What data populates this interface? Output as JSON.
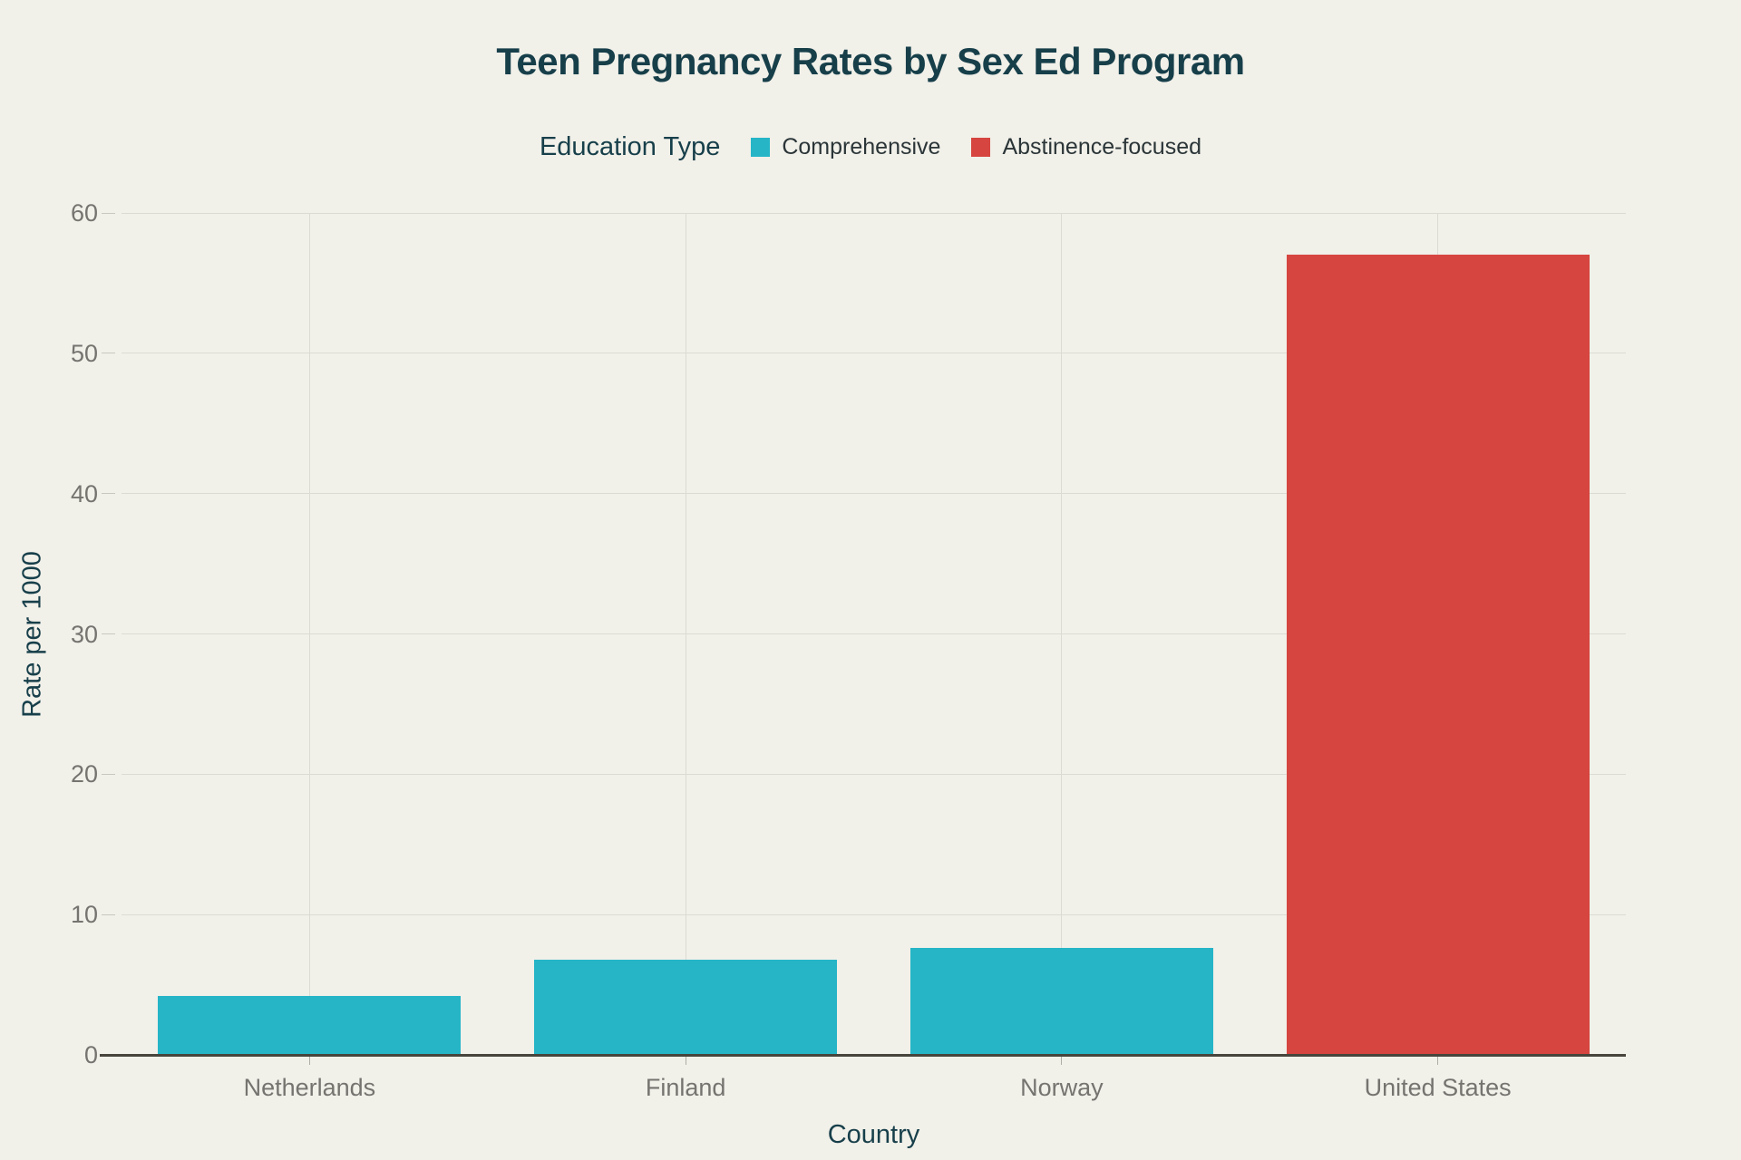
{
  "title": "Teen Pregnancy Rates by Sex Ed Program",
  "legend": {
    "title": "Education Type",
    "items": [
      {
        "label": "Comprehensive",
        "color": "#25b5c7"
      },
      {
        "label": "Abstinence-focused",
        "color": "#d6453f"
      }
    ]
  },
  "chart_data": {
    "type": "bar",
    "title": "Teen Pregnancy Rates by Sex Ed Program",
    "xlabel": "Country",
    "ylabel": "Rate per 1000",
    "legend_title": "Education Type",
    "legend_position": "top",
    "grid": true,
    "categories": [
      "Netherlands",
      "Finland",
      "Norway",
      "United States"
    ],
    "points": [
      {
        "category": "Netherlands",
        "series": "Comprehensive",
        "value": 4.2
      },
      {
        "category": "Finland",
        "series": "Comprehensive",
        "value": 6.8
      },
      {
        "category": "Norway",
        "series": "Comprehensive",
        "value": 7.6
      },
      {
        "category": "United States",
        "series": "Abstinence-focused",
        "value": 57
      }
    ],
    "ylim": [
      0,
      60
    ],
    "yticks": [
      0,
      10,
      20,
      30,
      40,
      50,
      60
    ]
  },
  "colors": {
    "comprehensive": "#25b5c7",
    "abstinence_focused": "#d6453f",
    "background": "#f1f0e9",
    "title_text": "#173f4a",
    "axis_text": "#75746f",
    "legend_text": "#2b3538",
    "gridline": "#dcdbd3",
    "axis_line": "#47453c"
  }
}
